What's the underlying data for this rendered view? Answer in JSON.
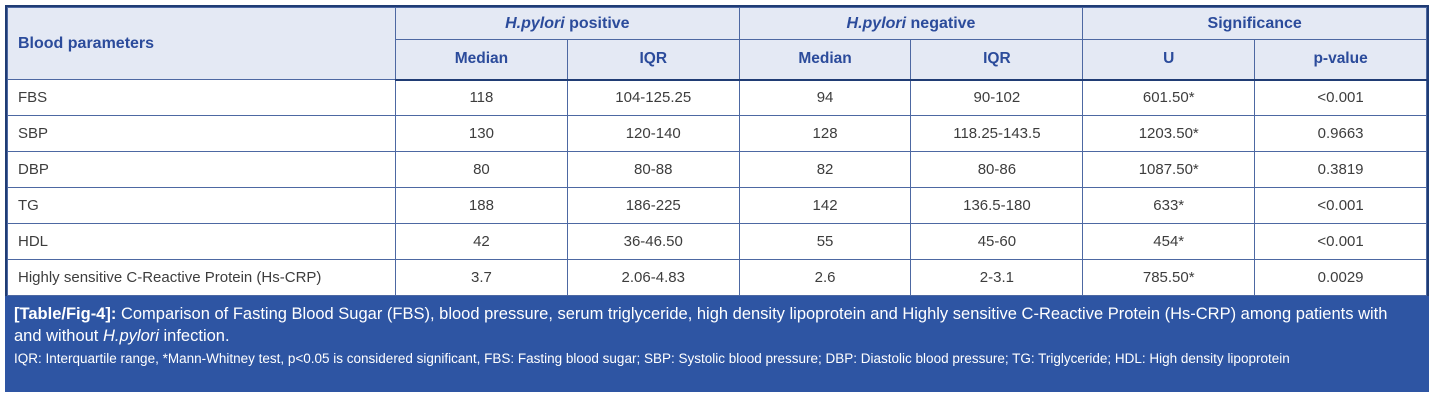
{
  "table": {
    "header": {
      "param_col": "Blood parameters",
      "group_positive_italic": "H.pylori",
      "group_positive_rest": " positive",
      "group_negative_italic": "H.pylori",
      "group_negative_rest": " negative",
      "group_significance": "Significance",
      "sub": [
        "Median",
        "IQR",
        "Median",
        "IQR",
        "U",
        "p-value"
      ]
    },
    "rows": [
      {
        "parameter": "FBS",
        "median_pos": "118",
        "iqr_pos": "104-125.25",
        "median_neg": "94",
        "iqr_neg": "90-102",
        "u": "601.50*",
        "p": "<0.001"
      },
      {
        "parameter": "SBP",
        "median_pos": "130",
        "iqr_pos": "120-140",
        "median_neg": "128",
        "iqr_neg": "118.25-143.5",
        "u": "1203.50*",
        "p": "0.9663"
      },
      {
        "parameter": "DBP",
        "median_pos": "80",
        "iqr_pos": "80-88",
        "median_neg": "82",
        "iqr_neg": "80-86",
        "u": "1087.50*",
        "p": "0.3819"
      },
      {
        "parameter": "TG",
        "median_pos": "188",
        "iqr_pos": "186-225",
        "median_neg": "142",
        "iqr_neg": "136.5-180",
        "u": "633*",
        "p": "<0.001"
      },
      {
        "parameter": "HDL",
        "median_pos": "42",
        "iqr_pos": "36-46.50",
        "median_neg": "55",
        "iqr_neg": "45-60",
        "u": "454*",
        "p": "<0.001"
      },
      {
        "parameter": "Highly sensitive C-Reactive Protein (Hs-CRP)",
        "median_pos": "3.7",
        "iqr_pos": "2.06-4.83",
        "median_neg": "2.6",
        "iqr_neg": "2-3.1",
        "u": "785.50*",
        "p": "0.0029"
      }
    ]
  },
  "caption": {
    "tag": "[Table/Fig-4]:",
    "text_before": " Comparison of Fasting Blood Sugar (FBS), blood pressure, serum triglyceride, high density lipoprotein and Highly sensitive C-Reactive Protein (Hs-CRP) among patients with and without ",
    "italic": "H.pylori",
    "text_after": " infection.",
    "footnote": "IQR: Interquartile range, *Mann-Whitney test, p<0.05 is considered significant, FBS: Fasting blood sugar; SBP: Systolic blood pressure; DBP: Diastolic blood pressure; TG: Triglyceride; HDL: High density lipoprotein"
  },
  "colors": {
    "header_bg": "#e4e9f4",
    "header_text": "#2b4b9b",
    "inner_border": "#4d68a2",
    "outer_border": "#203c74",
    "footer_bg": "#2e55a3",
    "data_text": "#3d3d3d"
  }
}
